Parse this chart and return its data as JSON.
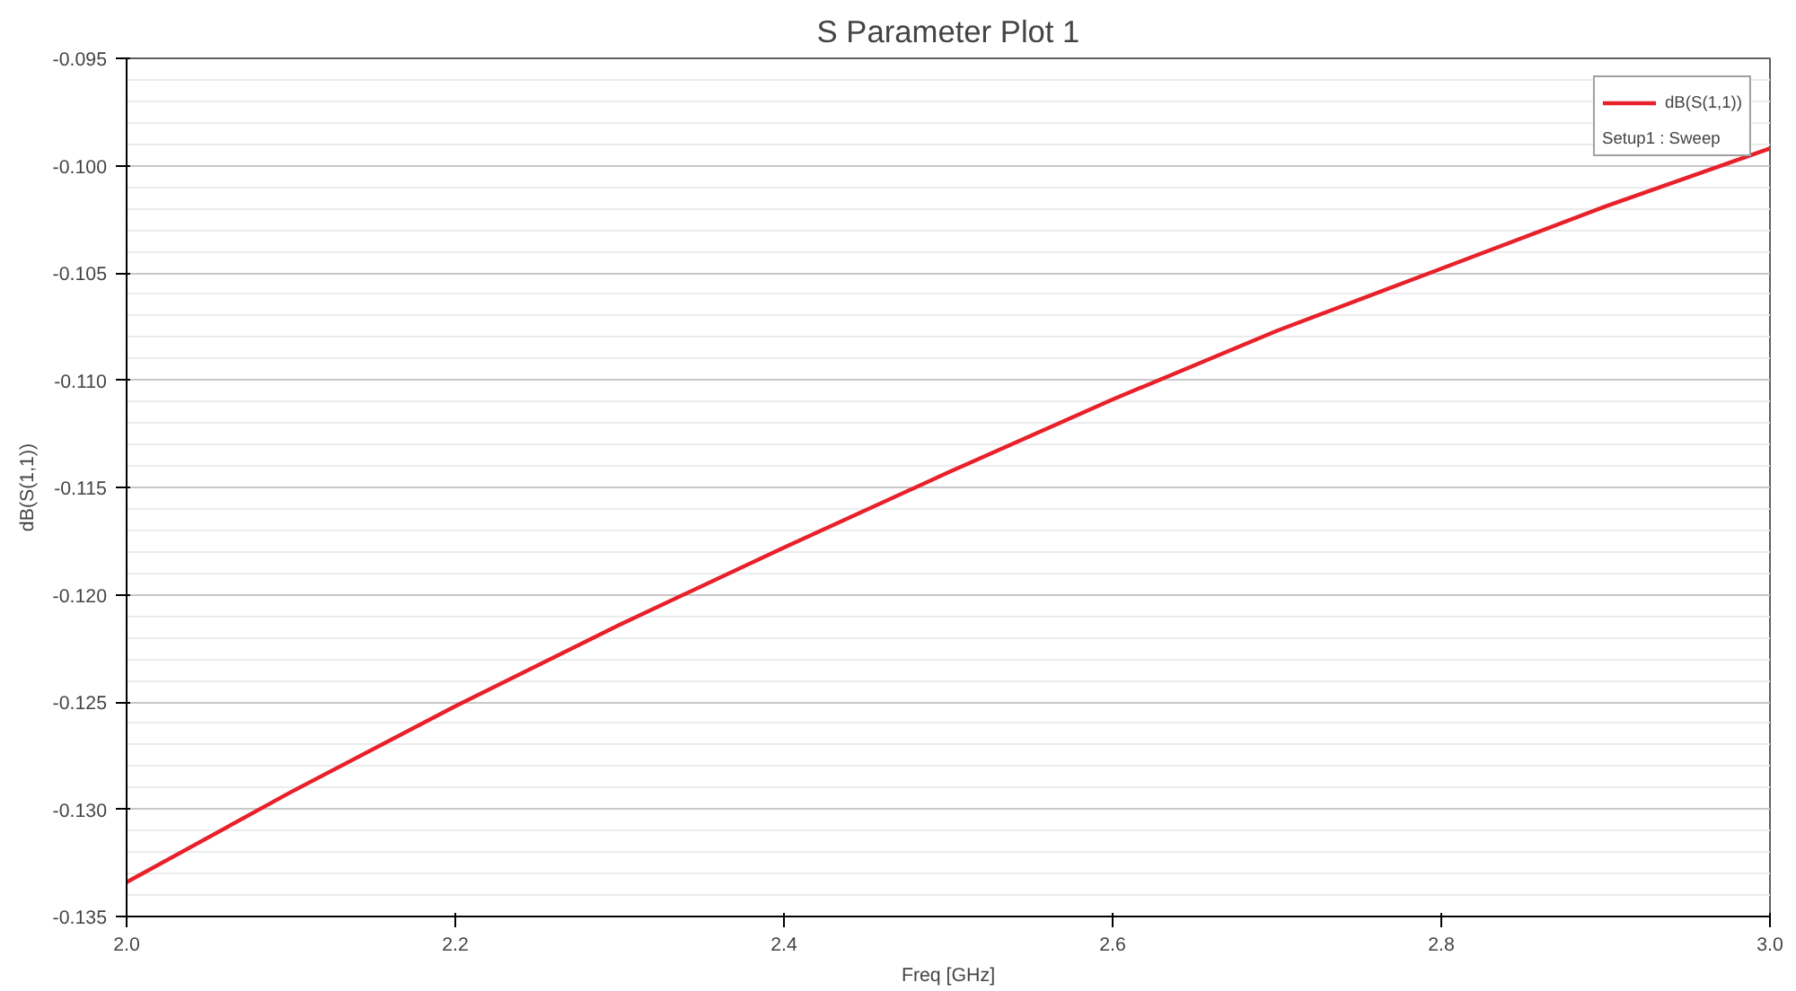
{
  "chart_data": {
    "type": "line",
    "title": "S Parameter Plot 1",
    "xlabel": "Freq [GHz]",
    "ylabel": "dB(S(1,1))",
    "legend_title": "Setup1 : Sweep",
    "x": [
      2.0,
      2.1,
      2.2,
      2.3,
      2.4,
      2.5,
      2.6,
      2.7,
      2.8,
      2.9,
      3.0
    ],
    "series": [
      {
        "name": "dB(S(1,1))",
        "color": "#e8202a",
        "values": [
          -0.1334,
          -0.1292,
          -0.1252,
          -0.1214,
          -0.1178,
          -0.1143,
          -0.1109,
          -0.1077,
          -0.1048,
          -0.1019,
          -0.0992
        ]
      }
    ],
    "xlim": [
      2.0,
      3.0
    ],
    "xticks": [
      {
        "value": 2.0,
        "label": "2.0"
      },
      2.2,
      2.4,
      2.6,
      2.8,
      {
        "value": 3.0,
        "label": "3.0"
      }
    ],
    "ylim": [
      -0.135,
      -0.095
    ],
    "yticks": [
      -0.135,
      {
        "value": -0.13,
        "label": "-0.130"
      },
      -0.125,
      {
        "value": -0.12,
        "label": "-0.120"
      },
      -0.115,
      {
        "value": -0.11,
        "label": "-0.110"
      },
      -0.105,
      {
        "value": -0.1,
        "label": "-0.100"
      },
      -0.095
    ],
    "grid": true,
    "legend": "top right",
    "line_style": "solid"
  }
}
